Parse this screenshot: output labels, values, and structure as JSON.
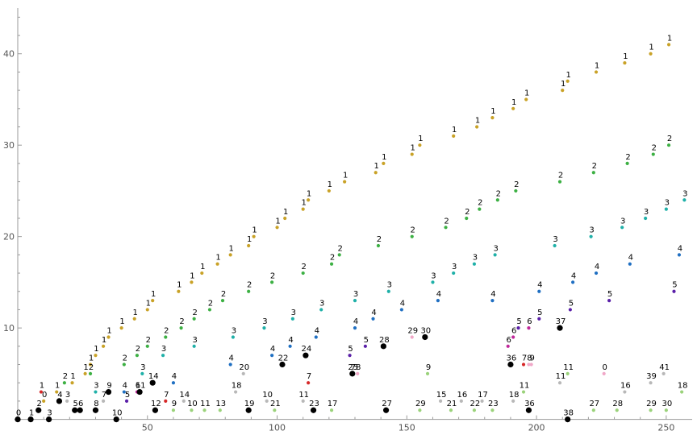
{
  "chart_data": {
    "type": "scatter",
    "title": "",
    "xlabel": "",
    "ylabel": "",
    "xlim": [
      0,
      260
    ],
    "ylim": [
      -0.3,
      45
    ],
    "grid": false,
    "legend": "none",
    "x_ticks": [
      50,
      100,
      150,
      200,
      250
    ],
    "y_ticks": [
      10,
      20,
      30,
      40
    ],
    "palette": {
      "gold": "#c9a227",
      "green": "#3cb043",
      "teal": "#1fb0a8",
      "blue": "#1f6fc2",
      "purple": "#5a1fa8",
      "magenta": "#c0289a",
      "red": "#d62828",
      "pink": "#f0a8c8",
      "lightgreen": "#9ad27a",
      "gray": "#b8b8b8",
      "black": "#000000"
    },
    "series": [
      {
        "color": "gold",
        "points": [
          {
            "x": 10,
            "y": 2,
            "label": "0"
          },
          {
            "x": 15,
            "y": 3,
            "label": "1"
          },
          {
            "x": 21,
            "y": 4,
            "label": "1"
          },
          {
            "x": 26,
            "y": 5,
            "label": "1"
          },
          {
            "x": 28,
            "y": 6,
            "label": "1"
          },
          {
            "x": 30,
            "y": 7,
            "label": "1"
          },
          {
            "x": 33,
            "y": 8,
            "label": "1"
          },
          {
            "x": 35,
            "y": 9,
            "label": "1"
          },
          {
            "x": 40,
            "y": 10,
            "label": "1"
          },
          {
            "x": 45,
            "y": 11,
            "label": "1"
          },
          {
            "x": 50,
            "y": 12,
            "label": "1"
          },
          {
            "x": 52,
            "y": 13,
            "label": "1"
          },
          {
            "x": 62,
            "y": 14,
            "label": "1"
          },
          {
            "x": 67,
            "y": 15,
            "label": "1"
          },
          {
            "x": 71,
            "y": 16,
            "label": "1"
          },
          {
            "x": 77,
            "y": 17,
            "label": "1"
          },
          {
            "x": 82,
            "y": 18,
            "label": "1"
          },
          {
            "x": 89,
            "y": 19,
            "label": "1"
          },
          {
            "x": 91,
            "y": 20,
            "label": "1"
          },
          {
            "x": 100,
            "y": 21,
            "label": "1"
          },
          {
            "x": 103,
            "y": 22,
            "label": "1"
          },
          {
            "x": 110,
            "y": 23,
            "label": "1"
          },
          {
            "x": 112,
            "y": 24,
            "label": "1"
          },
          {
            "x": 120,
            "y": 25,
            "label": "1"
          },
          {
            "x": 126,
            "y": 26,
            "label": "1"
          },
          {
            "x": 138,
            "y": 27,
            "label": "1"
          },
          {
            "x": 141,
            "y": 28,
            "label": "1"
          },
          {
            "x": 152,
            "y": 29,
            "label": "1"
          },
          {
            "x": 155,
            "y": 30,
            "label": "1"
          },
          {
            "x": 168,
            "y": 31,
            "label": "1"
          },
          {
            "x": 177,
            "y": 32,
            "label": "1"
          },
          {
            "x": 183,
            "y": 33,
            "label": "1"
          },
          {
            "x": 191,
            "y": 34,
            "label": "1"
          },
          {
            "x": 196,
            "y": 35,
            "label": "1"
          },
          {
            "x": 210,
            "y": 36,
            "label": "1"
          },
          {
            "x": 212,
            "y": 37,
            "label": "1"
          },
          {
            "x": 223,
            "y": 38,
            "label": "1"
          },
          {
            "x": 234,
            "y": 39,
            "label": "1"
          },
          {
            "x": 244,
            "y": 40,
            "label": "1"
          },
          {
            "x": 251,
            "y": 41,
            "label": "1"
          }
        ]
      },
      {
        "color": "green",
        "points": [
          {
            "x": 18,
            "y": 4,
            "label": "2"
          },
          {
            "x": 28,
            "y": 5,
            "label": "2"
          },
          {
            "x": 41,
            "y": 6,
            "label": "2"
          },
          {
            "x": 46,
            "y": 7,
            "label": "2"
          },
          {
            "x": 50,
            "y": 8,
            "label": "2"
          },
          {
            "x": 57,
            "y": 9,
            "label": "2"
          },
          {
            "x": 63,
            "y": 10,
            "label": "2"
          },
          {
            "x": 68,
            "y": 11,
            "label": "2"
          },
          {
            "x": 74,
            "y": 12,
            "label": "2"
          },
          {
            "x": 79,
            "y": 13,
            "label": "2"
          },
          {
            "x": 89,
            "y": 14,
            "label": "2"
          },
          {
            "x": 98,
            "y": 15,
            "label": "2"
          },
          {
            "x": 110,
            "y": 16,
            "label": "2"
          },
          {
            "x": 121,
            "y": 17,
            "label": "2"
          },
          {
            "x": 124,
            "y": 18,
            "label": "2"
          },
          {
            "x": 139,
            "y": 19,
            "label": "2"
          },
          {
            "x": 152,
            "y": 20,
            "label": "2"
          },
          {
            "x": 165,
            "y": 21,
            "label": "2"
          },
          {
            "x": 173,
            "y": 22,
            "label": "2"
          },
          {
            "x": 178,
            "y": 23,
            "label": "2"
          },
          {
            "x": 185,
            "y": 24,
            "label": "2"
          },
          {
            "x": 192,
            "y": 25,
            "label": "2"
          },
          {
            "x": 209,
            "y": 26,
            "label": "2"
          },
          {
            "x": 222,
            "y": 27,
            "label": "2"
          },
          {
            "x": 235,
            "y": 28,
            "label": "2"
          },
          {
            "x": 245,
            "y": 29,
            "label": "2"
          },
          {
            "x": 251,
            "y": 30,
            "label": "2"
          }
        ]
      },
      {
        "color": "teal",
        "points": [
          {
            "x": 30,
            "y": 3,
            "label": "3"
          },
          {
            "x": 48,
            "y": 5,
            "label": "3"
          },
          {
            "x": 56,
            "y": 7,
            "label": "3"
          },
          {
            "x": 68,
            "y": 8,
            "label": "3"
          },
          {
            "x": 83,
            "y": 9,
            "label": "3"
          },
          {
            "x": 95,
            "y": 10,
            "label": "3"
          },
          {
            "x": 106,
            "y": 11,
            "label": "3"
          },
          {
            "x": 117,
            "y": 12,
            "label": "3"
          },
          {
            "x": 130,
            "y": 13,
            "label": "3"
          },
          {
            "x": 143,
            "y": 14,
            "label": "3"
          },
          {
            "x": 160,
            "y": 15,
            "label": "3"
          },
          {
            "x": 168,
            "y": 16,
            "label": "3"
          },
          {
            "x": 176,
            "y": 17,
            "label": "3"
          },
          {
            "x": 184,
            "y": 18,
            "label": "3"
          },
          {
            "x": 207,
            "y": 19,
            "label": "3"
          },
          {
            "x": 221,
            "y": 20,
            "label": "3"
          },
          {
            "x": 233,
            "y": 21,
            "label": "3"
          },
          {
            "x": 242,
            "y": 22,
            "label": "3"
          },
          {
            "x": 250,
            "y": 23,
            "label": "3"
          },
          {
            "x": 257,
            "y": 24,
            "label": "3"
          }
        ]
      },
      {
        "color": "blue",
        "points": [
          {
            "x": 41,
            "y": 3,
            "label": "4"
          },
          {
            "x": 60,
            "y": 4,
            "label": "4"
          },
          {
            "x": 82,
            "y": 6,
            "label": "4"
          },
          {
            "x": 98,
            "y": 7,
            "label": "4"
          },
          {
            "x": 105,
            "y": 8,
            "label": "4"
          },
          {
            "x": 115,
            "y": 9,
            "label": "4"
          },
          {
            "x": 130,
            "y": 10,
            "label": "4"
          },
          {
            "x": 137,
            "y": 11,
            "label": "4"
          },
          {
            "x": 148,
            "y": 12,
            "label": "4"
          },
          {
            "x": 162,
            "y": 13,
            "label": "4"
          },
          {
            "x": 183,
            "y": 13,
            "label": "4"
          },
          {
            "x": 201,
            "y": 14,
            "label": "4"
          },
          {
            "x": 214,
            "y": 15,
            "label": "4"
          },
          {
            "x": 223,
            "y": 16,
            "label": "4"
          },
          {
            "x": 236,
            "y": 17,
            "label": "4"
          },
          {
            "x": 255,
            "y": 18,
            "label": "4"
          }
        ]
      },
      {
        "color": "purple",
        "points": [
          {
            "x": 42,
            "y": 2,
            "label": "5"
          },
          {
            "x": 128,
            "y": 7,
            "label": "5"
          },
          {
            "x": 134,
            "y": 8,
            "label": "5"
          },
          {
            "x": 193,
            "y": 10,
            "label": "5"
          },
          {
            "x": 201,
            "y": 11,
            "label": "5"
          },
          {
            "x": 213,
            "y": 12,
            "label": "5"
          },
          {
            "x": 228,
            "y": 13,
            "label": "5"
          },
          {
            "x": 253,
            "y": 14,
            "label": "5"
          }
        ]
      },
      {
        "color": "magenta",
        "points": [
          {
            "x": 46,
            "y": 3,
            "label": "6"
          },
          {
            "x": 189,
            "y": 8,
            "label": "6"
          },
          {
            "x": 191,
            "y": 9,
            "label": "6"
          },
          {
            "x": 197,
            "y": 10,
            "label": "6"
          }
        ]
      },
      {
        "color": "red",
        "points": [
          {
            "x": 9,
            "y": 3,
            "label": "1"
          },
          {
            "x": 57,
            "y": 2,
            "label": "7"
          },
          {
            "x": 112,
            "y": 4,
            "label": "7"
          },
          {
            "x": 129,
            "y": 5,
            "label": "7"
          },
          {
            "x": 195,
            "y": 6,
            "label": "7"
          }
        ]
      },
      {
        "color": "pink",
        "points": [
          {
            "x": 152,
            "y": 9,
            "label": "29"
          },
          {
            "x": 131,
            "y": 5,
            "label": "8"
          },
          {
            "x": 197,
            "y": 6,
            "label": "8"
          },
          {
            "x": 198,
            "y": 6,
            "label": "9"
          },
          {
            "x": 226,
            "y": 5,
            "label": "0"
          }
        ]
      },
      {
        "color": "black",
        "points": [
          {
            "x": 0,
            "y": 0,
            "label": "0"
          },
          {
            "x": 5,
            "y": 0,
            "label": "1"
          },
          {
            "x": 12,
            "y": 0,
            "label": "3"
          },
          {
            "x": 38,
            "y": 0,
            "label": "10"
          },
          {
            "x": 8,
            "y": 1,
            "label": "2"
          },
          {
            "x": 22,
            "y": 1,
            "label": "5"
          },
          {
            "x": 24,
            "y": 1,
            "label": "6"
          },
          {
            "x": 30,
            "y": 1,
            "label": "8"
          },
          {
            "x": 53,
            "y": 1,
            "label": "12"
          },
          {
            "x": 89,
            "y": 1,
            "label": "19"
          },
          {
            "x": 114,
            "y": 1,
            "label": "23"
          },
          {
            "x": 142,
            "y": 1,
            "label": "27"
          },
          {
            "x": 197,
            "y": 1,
            "label": "36"
          },
          {
            "x": 212,
            "y": 0,
            "label": "38"
          },
          {
            "x": 129,
            "y": 5,
            "label": "25"
          },
          {
            "x": 102,
            "y": 6,
            "label": "22"
          },
          {
            "x": 111,
            "y": 7,
            "label": "24"
          },
          {
            "x": 157,
            "y": 9,
            "label": "30"
          },
          {
            "x": 141,
            "y": 8,
            "label": "28"
          },
          {
            "x": 190,
            "y": 6,
            "label": "36"
          },
          {
            "x": 209,
            "y": 10,
            "label": "37"
          },
          {
            "x": 47,
            "y": 3,
            "label": "11"
          },
          {
            "x": 35,
            "y": 3,
            "label": "9"
          },
          {
            "x": 52,
            "y": 4,
            "label": "14"
          },
          {
            "x": 16,
            "y": 2,
            "label": "4"
          }
        ]
      },
      {
        "color": "gray",
        "points": [
          {
            "x": 19,
            "y": 2,
            "label": "3"
          },
          {
            "x": 87,
            "y": 5,
            "label": "20"
          },
          {
            "x": 33,
            "y": 2,
            "label": "7"
          },
          {
            "x": 64,
            "y": 2,
            "label": "14"
          },
          {
            "x": 84,
            "y": 3,
            "label": "18"
          },
          {
            "x": 96,
            "y": 2,
            "label": "10"
          },
          {
            "x": 110,
            "y": 2,
            "label": "11"
          },
          {
            "x": 163,
            "y": 2,
            "label": "15"
          },
          {
            "x": 171,
            "y": 2,
            "label": "16"
          },
          {
            "x": 179,
            "y": 2,
            "label": "17"
          },
          {
            "x": 191,
            "y": 2,
            "label": "18"
          },
          {
            "x": 209,
            "y": 4,
            "label": "11"
          },
          {
            "x": 234,
            "y": 3,
            "label": "16"
          },
          {
            "x": 244,
            "y": 4,
            "label": "39"
          },
          {
            "x": 249,
            "y": 5,
            "label": "41"
          }
        ]
      },
      {
        "color": "lightgreen",
        "points": [
          {
            "x": 60,
            "y": 1,
            "label": "9"
          },
          {
            "x": 67,
            "y": 1,
            "label": "10"
          },
          {
            "x": 72,
            "y": 1,
            "label": "11"
          },
          {
            "x": 78,
            "y": 1,
            "label": "13"
          },
          {
            "x": 99,
            "y": 1,
            "label": "21"
          },
          {
            "x": 121,
            "y": 1,
            "label": "17"
          },
          {
            "x": 155,
            "y": 1,
            "label": "29"
          },
          {
            "x": 167,
            "y": 1,
            "label": "21"
          },
          {
            "x": 176,
            "y": 1,
            "label": "22"
          },
          {
            "x": 183,
            "y": 1,
            "label": "23"
          },
          {
            "x": 195,
            "y": 3,
            "label": "11"
          },
          {
            "x": 222,
            "y": 1,
            "label": "27"
          },
          {
            "x": 231,
            "y": 1,
            "label": "28"
          },
          {
            "x": 244,
            "y": 1,
            "label": "29"
          },
          {
            "x": 250,
            "y": 1,
            "label": "30"
          },
          {
            "x": 158,
            "y": 5,
            "label": "9"
          },
          {
            "x": 212,
            "y": 5,
            "label": "11"
          },
          {
            "x": 256,
            "y": 3,
            "label": "18"
          }
        ]
      }
    ]
  }
}
